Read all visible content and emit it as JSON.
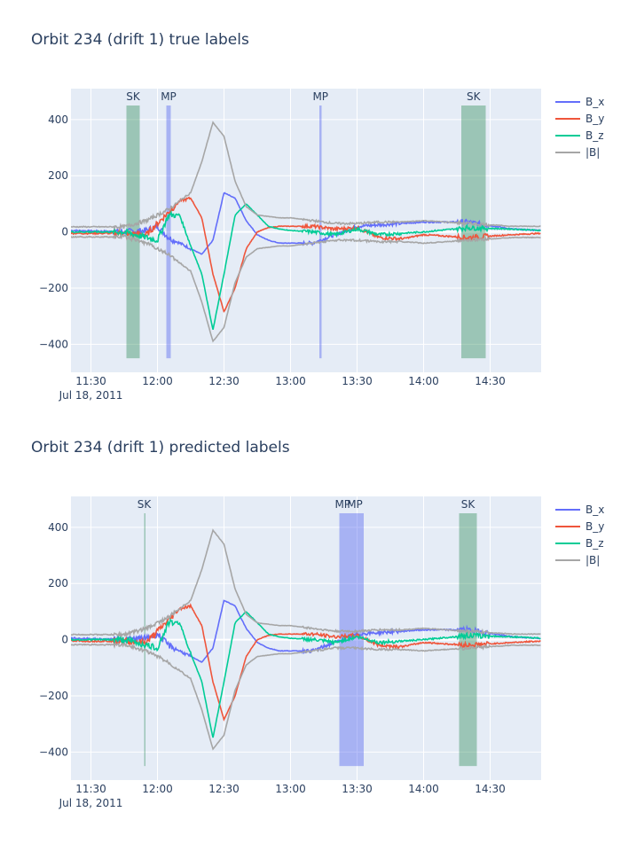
{
  "chart_data": [
    {
      "type": "line",
      "title": "Orbit 234 (drift 1) true labels",
      "xlim": [
        "11:21",
        "14:53"
      ],
      "ylim": [
        -500,
        510
      ],
      "yticks": [
        -400,
        -200,
        0,
        200,
        400
      ],
      "xticks": [
        "11:30",
        "12:00",
        "12:30",
        "13:00",
        "13:30",
        "14:00",
        "14:30"
      ],
      "date_label": "Jul 18, 2011",
      "grid": true,
      "legend": "right",
      "regions": [
        {
          "label": "SK",
          "start": "11:46",
          "end": "11:52",
          "color": "#2e8b57"
        },
        {
          "label": "MP",
          "start": "12:04",
          "end": "12:06",
          "color": "#4a5cf0"
        },
        {
          "label": "MP",
          "start": "13:13",
          "end": "13:14",
          "color": "#4a5cf0"
        },
        {
          "label": "SK",
          "start": "14:17",
          "end": "14:28",
          "color": "#2e8b57"
        }
      ],
      "series": [
        {
          "name": "B_x",
          "color": "#636efa",
          "x": [
            "11:21",
            "11:45",
            "11:55",
            "12:00",
            "12:05",
            "12:10",
            "12:15",
            "12:20",
            "12:25",
            "12:30",
            "12:35",
            "12:40",
            "12:45",
            "12:50",
            "12:55",
            "13:00",
            "13:10",
            "13:20",
            "13:30",
            "13:40",
            "13:50",
            "14:00",
            "14:20",
            "14:40",
            "14:53"
          ],
          "y": [
            5,
            0,
            5,
            20,
            -20,
            -40,
            -60,
            -80,
            -30,
            140,
            120,
            40,
            -10,
            -30,
            -40,
            -40,
            -40,
            -10,
            20,
            25,
            30,
            35,
            35,
            10,
            5
          ]
        },
        {
          "name": "B_y",
          "color": "#ef553b",
          "x": [
            "11:21",
            "11:45",
            "11:55",
            "12:00",
            "12:05",
            "12:10",
            "12:15",
            "12:20",
            "12:25",
            "12:30",
            "12:35",
            "12:40",
            "12:45",
            "12:50",
            "12:55",
            "13:00",
            "13:10",
            "13:20",
            "13:30",
            "13:40",
            "13:50",
            "14:00",
            "14:20",
            "14:40",
            "14:53"
          ],
          "y": [
            -5,
            -5,
            -10,
            30,
            70,
            110,
            120,
            50,
            -150,
            -285,
            -200,
            -60,
            0,
            15,
            20,
            20,
            20,
            10,
            15,
            -20,
            -25,
            -10,
            -20,
            -10,
            -5
          ]
        },
        {
          "name": "B_z",
          "color": "#00cc96",
          "x": [
            "11:21",
            "11:45",
            "11:55",
            "12:00",
            "12:05",
            "12:10",
            "12:15",
            "12:20",
            "12:25",
            "12:30",
            "12:35",
            "12:40",
            "12:45",
            "12:50",
            "12:55",
            "13:00",
            "13:10",
            "13:20",
            "13:30",
            "13:40",
            "13:50",
            "14:00",
            "14:20",
            "14:40",
            "14:53"
          ],
          "y": [
            0,
            0,
            -20,
            -30,
            60,
            60,
            -50,
            -150,
            -350,
            -150,
            60,
            100,
            60,
            20,
            10,
            5,
            0,
            -10,
            10,
            -10,
            -5,
            0,
            15,
            10,
            5
          ]
        },
        {
          "name": "|B|",
          "color": "#a6a6a6",
          "x": [
            "11:21",
            "11:45",
            "11:55",
            "12:00",
            "12:05",
            "12:10",
            "12:15",
            "12:20",
            "12:25",
            "12:30",
            "12:35",
            "12:40",
            "12:45",
            "12:50",
            "12:55",
            "13:00",
            "13:10",
            "13:20",
            "13:30",
            "13:40",
            "13:50",
            "14:00",
            "14:20",
            "14:40",
            "14:53"
          ],
          "y": [
            18,
            18,
            40,
            60,
            80,
            110,
            140,
            250,
            390,
            340,
            180,
            90,
            60,
            55,
            50,
            50,
            40,
            30,
            30,
            35,
            35,
            40,
            30,
            20,
            20
          ]
        }
      ]
    },
    {
      "type": "line",
      "title": "Orbit 234 (drift 1) predicted labels",
      "xlim": [
        "11:21",
        "14:53"
      ],
      "ylim": [
        -500,
        510
      ],
      "yticks": [
        -400,
        -200,
        0,
        200,
        400
      ],
      "xticks": [
        "11:30",
        "12:00",
        "12:30",
        "13:00",
        "13:30",
        "14:00",
        "14:30"
      ],
      "date_label": "Jul 18, 2011",
      "grid": true,
      "legend": "right",
      "regions": [
        {
          "label": "SK",
          "start": "11:54",
          "end": "11:54",
          "color": "#2e8b57"
        },
        {
          "label": "MP",
          "start": "13:22",
          "end": "13:25",
          "color": "#4a5cf0"
        },
        {
          "label": "MP",
          "start": "13:25",
          "end": "13:33",
          "color": "#4a5cf0"
        },
        {
          "label": "SK",
          "start": "14:16",
          "end": "14:24",
          "color": "#2e8b57"
        }
      ],
      "series": [
        {
          "name": "B_x",
          "color": "#636efa",
          "x": [
            "11:21",
            "11:45",
            "11:55",
            "12:00",
            "12:05",
            "12:10",
            "12:15",
            "12:20",
            "12:25",
            "12:30",
            "12:35",
            "12:40",
            "12:45",
            "12:50",
            "12:55",
            "13:00",
            "13:10",
            "13:20",
            "13:30",
            "13:40",
            "13:50",
            "14:00",
            "14:20",
            "14:40",
            "14:53"
          ],
          "y": [
            5,
            0,
            5,
            20,
            -20,
            -40,
            -60,
            -80,
            -30,
            140,
            120,
            40,
            -10,
            -30,
            -40,
            -40,
            -40,
            -10,
            20,
            25,
            30,
            35,
            35,
            10,
            5
          ]
        },
        {
          "name": "B_y",
          "color": "#ef553b",
          "x": [
            "11:21",
            "11:45",
            "11:55",
            "12:00",
            "12:05",
            "12:10",
            "12:15",
            "12:20",
            "12:25",
            "12:30",
            "12:35",
            "12:40",
            "12:45",
            "12:50",
            "12:55",
            "13:00",
            "13:10",
            "13:20",
            "13:30",
            "13:40",
            "13:50",
            "14:00",
            "14:20",
            "14:40",
            "14:53"
          ],
          "y": [
            -5,
            -5,
            -10,
            30,
            70,
            110,
            120,
            50,
            -150,
            -285,
            -200,
            -60,
            0,
            15,
            20,
            20,
            20,
            10,
            15,
            -20,
            -25,
            -10,
            -20,
            -10,
            -5
          ]
        },
        {
          "name": "B_z",
          "color": "#00cc96",
          "x": [
            "11:21",
            "11:45",
            "11:55",
            "12:00",
            "12:05",
            "12:10",
            "12:15",
            "12:20",
            "12:25",
            "12:30",
            "12:35",
            "12:40",
            "12:45",
            "12:50",
            "12:55",
            "13:00",
            "13:10",
            "13:20",
            "13:30",
            "13:40",
            "13:50",
            "14:00",
            "14:20",
            "14:40",
            "14:53"
          ],
          "y": [
            0,
            0,
            -20,
            -30,
            60,
            60,
            -50,
            -150,
            -350,
            -150,
            60,
            100,
            60,
            20,
            10,
            5,
            0,
            -10,
            10,
            -10,
            -5,
            0,
            15,
            10,
            5
          ]
        },
        {
          "name": "|B|",
          "color": "#a6a6a6",
          "x": [
            "11:21",
            "11:45",
            "11:55",
            "12:00",
            "12:05",
            "12:10",
            "12:15",
            "12:20",
            "12:25",
            "12:30",
            "12:35",
            "12:40",
            "12:45",
            "12:50",
            "12:55",
            "13:00",
            "13:10",
            "13:20",
            "13:30",
            "13:40",
            "13:50",
            "14:00",
            "14:20",
            "14:40",
            "14:53"
          ],
          "y": [
            18,
            18,
            40,
            60,
            80,
            110,
            140,
            250,
            390,
            340,
            180,
            90,
            60,
            55,
            50,
            50,
            40,
            30,
            30,
            35,
            35,
            40,
            30,
            20,
            20
          ]
        }
      ]
    }
  ]
}
